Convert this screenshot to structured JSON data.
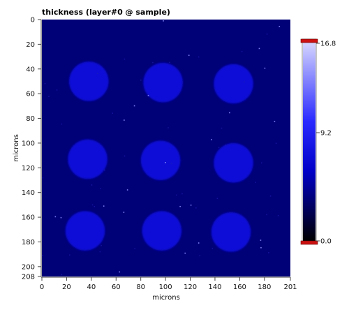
{
  "chart_data": {
    "type": "heatmap",
    "title": "thickness (layer#0 @ sample)",
    "xlabel": "microns",
    "ylabel": "microns",
    "xlim": [
      0,
      201
    ],
    "ylim": [
      0,
      208
    ],
    "y_inverted": true,
    "x_ticks": [
      "0",
      "20",
      "40",
      "60",
      "80",
      "100",
      "120",
      "140",
      "160",
      "180",
      "201"
    ],
    "x_tick_values": [
      0,
      20,
      40,
      60,
      80,
      100,
      120,
      140,
      160,
      180,
      201
    ],
    "y_ticks": [
      "0",
      "20",
      "40",
      "60",
      "80",
      "100",
      "120",
      "140",
      "160",
      "180",
      "200",
      "208"
    ],
    "y_tick_values": [
      0,
      20,
      40,
      60,
      80,
      100,
      120,
      140,
      160,
      180,
      200,
      208
    ],
    "colorbar": {
      "min": 0.0,
      "max": 16.8,
      "tick_labels": [
        "16.8",
        "9.2",
        "0.0"
      ],
      "tick_values": [
        16.8,
        9.2,
        0.0
      ],
      "colors": [
        "#000000",
        "#0000c8",
        "#2a2aff",
        "#d8d8ff"
      ]
    },
    "background_value": 3.5,
    "features": [
      {
        "shape": "circle",
        "cx": 38,
        "cy": 50,
        "r": 16,
        "value": 7.0
      },
      {
        "shape": "circle",
        "cx": 98,
        "cy": 51,
        "r": 16,
        "value": 7.0
      },
      {
        "shape": "circle",
        "cx": 155,
        "cy": 52,
        "r": 16,
        "value": 7.0
      },
      {
        "shape": "circle",
        "cx": 37,
        "cy": 113,
        "r": 16,
        "value": 7.0
      },
      {
        "shape": "circle",
        "cx": 96,
        "cy": 114,
        "r": 16,
        "value": 7.0
      },
      {
        "shape": "circle",
        "cx": 155,
        "cy": 116,
        "r": 16,
        "value": 7.0
      },
      {
        "shape": "circle",
        "cx": 35,
        "cy": 171,
        "r": 16,
        "value": 7.0
      },
      {
        "shape": "circle",
        "cx": 97,
        "cy": 171,
        "r": 16,
        "value": 7.0
      },
      {
        "shape": "circle",
        "cx": 153,
        "cy": 172,
        "r": 16,
        "value": 7.0
      }
    ]
  }
}
